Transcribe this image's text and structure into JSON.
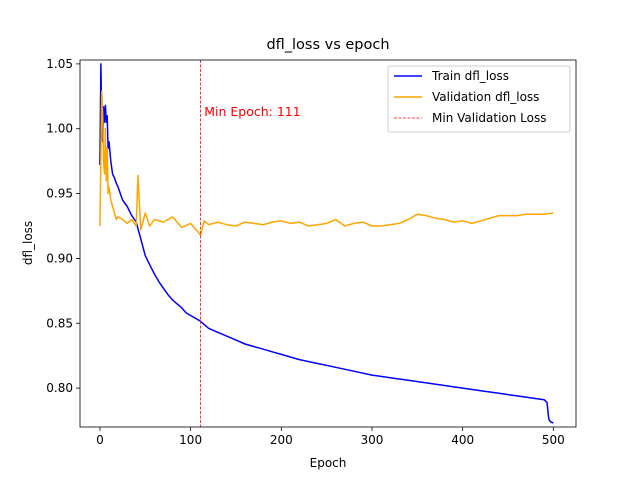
{
  "chart_data": {
    "type": "line",
    "title": "dfl_loss vs epoch",
    "xlabel": "Epoch",
    "ylabel": "dfl_loss",
    "xlim": [
      -22,
      525
    ],
    "ylim": [
      0.77,
      1.053
    ],
    "xticks": [
      0,
      100,
      200,
      300,
      400,
      500
    ],
    "xtick_labels": [
      "0",
      "100",
      "200",
      "300",
      "400",
      "500"
    ],
    "yticks": [
      0.8,
      0.85,
      0.9,
      0.95,
      1.0,
      1.05
    ],
    "ytick_labels": [
      "0.80",
      "0.85",
      "0.90",
      "0.95",
      "1.00",
      "1.05"
    ],
    "grid": false,
    "legend_position": "upper right",
    "series": [
      {
        "name": "Train dfl_loss",
        "color": "#0000ff",
        "x": [
          0,
          1,
          2,
          3,
          4,
          5,
          6,
          7,
          8,
          9,
          10,
          12,
          14,
          16,
          18,
          20,
          25,
          30,
          35,
          40,
          45,
          50,
          55,
          60,
          65,
          70,
          75,
          80,
          85,
          90,
          95,
          100,
          110,
          120,
          130,
          140,
          150,
          160,
          170,
          180,
          190,
          200,
          220,
          240,
          260,
          280,
          300,
          320,
          340,
          360,
          380,
          400,
          420,
          440,
          460,
          480,
          490,
          493,
          495,
          497,
          500
        ],
        "values": [
          0.972,
          1.05,
          1.0,
          0.99,
          1.017,
          1.005,
          1.018,
          1.005,
          1.01,
          0.985,
          0.99,
          0.975,
          0.965,
          0.962,
          0.958,
          0.955,
          0.945,
          0.94,
          0.933,
          0.928,
          0.915,
          0.902,
          0.895,
          0.888,
          0.882,
          0.877,
          0.872,
          0.868,
          0.865,
          0.862,
          0.858,
          0.856,
          0.852,
          0.846,
          0.843,
          0.84,
          0.837,
          0.834,
          0.832,
          0.83,
          0.828,
          0.826,
          0.822,
          0.819,
          0.816,
          0.813,
          0.81,
          0.808,
          0.806,
          0.804,
          0.802,
          0.8,
          0.798,
          0.796,
          0.794,
          0.792,
          0.791,
          0.789,
          0.776,
          0.774,
          0.773
        ]
      },
      {
        "name": "Validation dfl_loss",
        "color": "#ffa500",
        "x": [
          0,
          1,
          2,
          3,
          4,
          5,
          6,
          7,
          8,
          9,
          10,
          12,
          14,
          16,
          18,
          20,
          25,
          30,
          35,
          40,
          42,
          45,
          50,
          55,
          60,
          70,
          80,
          90,
          100,
          105,
          111,
          115,
          120,
          130,
          140,
          150,
          160,
          170,
          180,
          190,
          200,
          210,
          220,
          230,
          240,
          250,
          260,
          270,
          280,
          290,
          300,
          310,
          320,
          330,
          340,
          350,
          360,
          370,
          380,
          390,
          400,
          410,
          420,
          430,
          440,
          450,
          460,
          470,
          480,
          490,
          500
        ],
        "values": [
          0.925,
          0.98,
          1.029,
          1.01,
          0.975,
          0.965,
          1.0,
          0.96,
          0.985,
          0.95,
          0.955,
          0.945,
          0.94,
          0.935,
          0.93,
          0.932,
          0.93,
          0.927,
          0.93,
          0.925,
          0.964,
          0.922,
          0.935,
          0.925,
          0.93,
          0.928,
          0.932,
          0.924,
          0.927,
          0.923,
          0.918,
          0.929,
          0.926,
          0.928,
          0.926,
          0.925,
          0.928,
          0.927,
          0.926,
          0.928,
          0.929,
          0.927,
          0.928,
          0.925,
          0.926,
          0.927,
          0.93,
          0.925,
          0.927,
          0.928,
          0.925,
          0.925,
          0.926,
          0.927,
          0.93,
          0.934,
          0.933,
          0.931,
          0.93,
          0.928,
          0.929,
          0.927,
          0.929,
          0.931,
          0.933,
          0.933,
          0.933,
          0.934,
          0.934,
          0.934,
          0.935
        ]
      },
      {
        "name": "Min Validation Loss",
        "color": "#ff0000",
        "style": "dashed",
        "vline_x": 111
      }
    ],
    "annotations": [
      {
        "text": "Min Epoch: 111",
        "x": 115,
        "y": 1.013,
        "color": "#ff0000"
      }
    ]
  }
}
